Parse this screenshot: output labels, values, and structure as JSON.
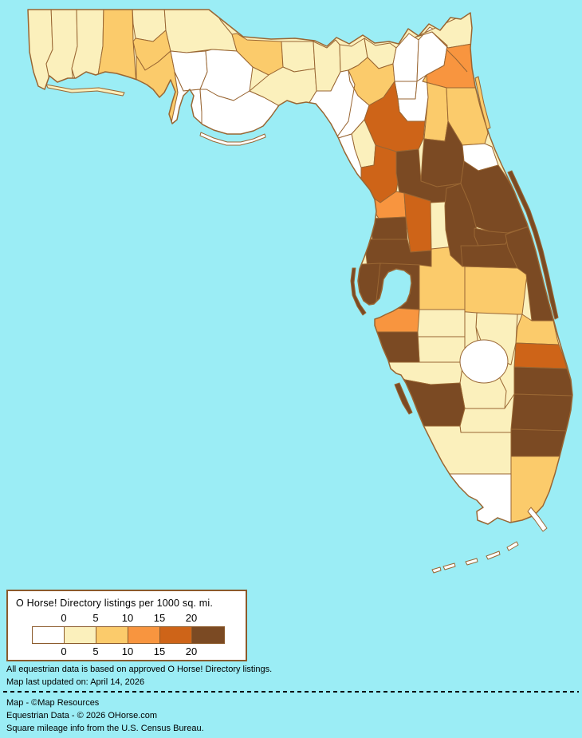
{
  "legend": {
    "title": "O Horse! Directory listings per 1000 sq. mi.",
    "ticks_top": [
      "0",
      "5",
      "10",
      "15",
      "20"
    ],
    "ticks_bottom": [
      "0",
      "5",
      "10",
      "15",
      "20"
    ],
    "colors": [
      "#FFFFFF",
      "#FBF0BC",
      "#FBCB6B",
      "#F8953F",
      "#CE6418",
      "#7B4A23"
    ],
    "box_background": "#FFFFFF",
    "box_border_color": "#8B5A2B"
  },
  "notes": {
    "line1": "All equestrian data is based on approved O Horse! Directory listings.",
    "line2": "Map last updated on: April 14, 2026"
  },
  "credits": {
    "line1": "Map - ©Map Resources",
    "line2": "Equestrian Data - © 2026 OHorse.com",
    "line3": "Square mileage info from the U.S. Census Bureau."
  },
  "map": {
    "water_color": "#9BEDF5",
    "border_color": "#996633",
    "base_land_color": "#FBF0BC",
    "lake": {
      "id": "lake-okeechobee",
      "bucket": 0
    },
    "counties": [
      {
        "id": "escambia",
        "bucket": 1
      },
      {
        "id": "santa_rosa",
        "bucket": 1
      },
      {
        "id": "okaloosa",
        "bucket": 1
      },
      {
        "id": "walton",
        "bucket": 2
      },
      {
        "id": "holmes",
        "bucket": 1
      },
      {
        "id": "washington",
        "bucket": 2
      },
      {
        "id": "jackson",
        "bucket": 1
      },
      {
        "id": "bay",
        "bucket": 2
      },
      {
        "id": "calhoun",
        "bucket": 0
      },
      {
        "id": "gulf",
        "bucket": 0
      },
      {
        "id": "liberty",
        "bucket": 0
      },
      {
        "id": "gadsden",
        "bucket": 2
      },
      {
        "id": "franklin",
        "bucket": 0
      },
      {
        "id": "leon",
        "bucket": 1
      },
      {
        "id": "wakulla",
        "bucket": 1
      },
      {
        "id": "jefferson",
        "bucket": 1
      },
      {
        "id": "madison",
        "bucket": 1
      },
      {
        "id": "taylor",
        "bucket": 0
      },
      {
        "id": "hamilton",
        "bucket": 1
      },
      {
        "id": "suwannee",
        "bucket": 2
      },
      {
        "id": "columbia",
        "bucket": 0
      },
      {
        "id": "baker",
        "bucket": 0
      },
      {
        "id": "union",
        "bucket": 0
      },
      {
        "id": "bradford",
        "bucket": 0
      },
      {
        "id": "lafayette",
        "bucket": 0
      },
      {
        "id": "nassau",
        "bucket": 1
      },
      {
        "id": "duval",
        "bucket": 3
      },
      {
        "id": "clay",
        "bucket": 2
      },
      {
        "id": "st_johns",
        "bucket": 2
      },
      {
        "id": "putnam",
        "bucket": 5
      },
      {
        "id": "flagler",
        "bucket": 0
      },
      {
        "id": "alachua",
        "bucket": 4
      },
      {
        "id": "gilchrist",
        "bucket": 1
      },
      {
        "id": "dixie",
        "bucket": 0
      },
      {
        "id": "levy",
        "bucket": 4
      },
      {
        "id": "marion",
        "bucket": 5
      },
      {
        "id": "citrus",
        "bucket": 3
      },
      {
        "id": "sumter",
        "bucket": 4
      },
      {
        "id": "hernando",
        "bucket": 5
      },
      {
        "id": "pasco",
        "bucket": 5
      },
      {
        "id": "pinellas",
        "bucket": 5
      },
      {
        "id": "hillsborough",
        "bucket": 5
      },
      {
        "id": "polk",
        "bucket": 2
      },
      {
        "id": "osceola",
        "bucket": 2
      },
      {
        "id": "lake",
        "bucket": 5
      },
      {
        "id": "seminole",
        "bucket": 5
      },
      {
        "id": "orange",
        "bucket": 5
      },
      {
        "id": "volusia",
        "bucket": 5
      },
      {
        "id": "brevard",
        "bucket": 5
      },
      {
        "id": "indian_river",
        "bucket": 2
      },
      {
        "id": "okeechobee",
        "bucket": 1
      },
      {
        "id": "highlands",
        "bucket": 1
      },
      {
        "id": "st_lucie",
        "bucket": 4
      },
      {
        "id": "martin",
        "bucket": 5
      },
      {
        "id": "hardee",
        "bucket": 1
      },
      {
        "id": "desoto",
        "bucket": 1
      },
      {
        "id": "manatee",
        "bucket": 3
      },
      {
        "id": "sarasota",
        "bucket": 5
      },
      {
        "id": "charlotte",
        "bucket": 1
      },
      {
        "id": "glades",
        "bucket": 1
      },
      {
        "id": "lee",
        "bucket": 5
      },
      {
        "id": "hendry",
        "bucket": 1
      },
      {
        "id": "collier",
        "bucket": 1
      },
      {
        "id": "palm_beach",
        "bucket": 5
      },
      {
        "id": "broward",
        "bucket": 5
      },
      {
        "id": "miami_dade",
        "bucket": 2
      },
      {
        "id": "monroe",
        "bucket": 0
      }
    ],
    "islands": [
      {
        "id": "santa-rosa-island",
        "bucket": 1
      },
      {
        "id": "st-george-island",
        "bucket": 0
      },
      {
        "id": "st-johns-barrier",
        "bucket": 2
      },
      {
        "id": "brevard-barrier",
        "bucket": 5
      },
      {
        "id": "pinellas-barrier",
        "bucket": 5
      },
      {
        "id": "sanibel-island",
        "bucket": 5
      },
      {
        "id": "key-largo",
        "bucket": 0
      },
      {
        "id": "key-2",
        "bucket": 0
      },
      {
        "id": "key-3",
        "bucket": 0
      },
      {
        "id": "key-4",
        "bucket": 0
      },
      {
        "id": "key-5",
        "bucket": 0
      },
      {
        "id": "key-west",
        "bucket": 0
      }
    ]
  }
}
